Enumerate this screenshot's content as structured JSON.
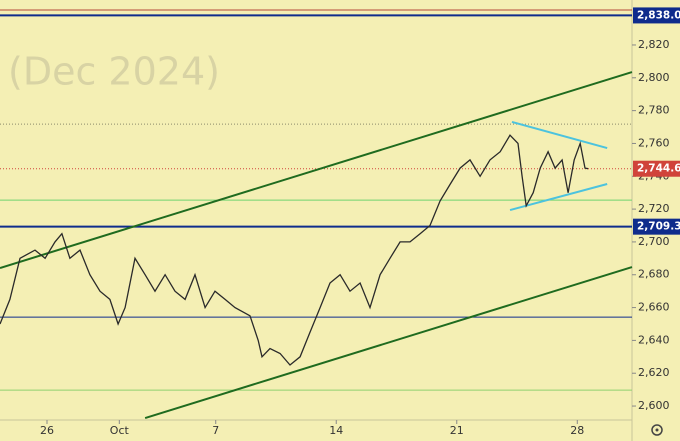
{
  "chart_data": {
    "type": "line",
    "watermark": "(Dec 2024)",
    "x": [
      -1.95,
      -1.54,
      -1.12,
      -0.5,
      -0.08,
      0.33,
      0.62,
      0.95,
      1.37,
      1.78,
      2.2,
      2.61,
      2.95,
      3.24,
      3.65,
      4.07,
      4.48,
      4.9,
      5.31,
      5.73,
      6.14,
      6.56,
      6.97,
      7.39,
      7.8,
      8.42,
      8.76,
      8.92,
      9.25,
      9.67,
      10.08,
      10.5,
      10.91,
      11.33,
      11.74,
      12.16,
      12.57,
      12.99,
      13.4,
      13.82,
      14.23,
      14.65,
      15.06,
      15.48,
      15.89,
      16.31,
      16.72,
      17.14,
      17.55,
      17.97,
      18.38,
      18.8,
      19.21,
      19.54,
      19.71,
      19.88,
      20.17,
      20.46,
      20.79,
      21.08,
      21.37,
      21.62,
      21.87,
      22.12,
      22.32,
      22.45
    ],
    "series": [
      {
        "color": "#2a2a2a",
        "values": [
          2650,
          2665,
          2690,
          2695,
          2690,
          2700,
          2705,
          2690,
          2695,
          2680,
          2670,
          2665,
          2650,
          2660,
          2690,
          2680,
          2670,
          2680,
          2670,
          2665,
          2680,
          2660,
          2670,
          2665,
          2660,
          2655,
          2640,
          2630,
          2635,
          2632,
          2625,
          2630,
          2645,
          2660,
          2675,
          2680,
          2670,
          2675,
          2660,
          2680,
          2690,
          2700,
          2700,
          2705,
          2710,
          2725,
          2735,
          2745,
          2750,
          2740,
          2750,
          2755,
          2765,
          2760,
          2740,
          2722,
          2730,
          2745,
          2755,
          2745,
          2750,
          2730,
          2750,
          2760,
          2745,
          2744.6
        ]
      }
    ],
    "trend_lines": [
      {
        "color": "#1f6b1f",
        "x": [
          -1.95,
          24.27
        ],
        "values": [
          2684.1,
          2803.5
        ]
      },
      {
        "color": "#1f6b1f",
        "x": [
          4.07,
          24.27
        ],
        "values": [
          2592.7,
          2684.7
        ]
      },
      {
        "color": "#4cc3de",
        "x": [
          19.29,
          23.24
        ],
        "values": [
          2773.1,
          2757.2
        ]
      },
      {
        "color": "#4cc3de",
        "x": [
          19.21,
          23.24
        ],
        "values": [
          2719.4,
          2735.3
        ]
      }
    ],
    "levels": [
      {
        "value": 2841.3,
        "color": "#b5483a",
        "style": "thin"
      },
      {
        "value": 2838,
        "label": "2,838.0",
        "color": "#0f2c8c",
        "style": "thick"
      },
      {
        "value": 2771.8,
        "color": "#8a8a6a",
        "style": "dotted"
      },
      {
        "value": 2744.6,
        "label": "2,744.6",
        "color": "#d0433a",
        "style": "dotted"
      },
      {
        "value": 2725.5,
        "color": "#6fd36f",
        "style": "thin"
      },
      {
        "value": 2709.3,
        "label": "2,709.3",
        "color": "#0f2c8c",
        "style": "thick"
      },
      {
        "value": 2654.2,
        "color": "#0f2c8c",
        "style": "thin"
      },
      {
        "value": 2609.7,
        "color": "#8fd06f",
        "style": "thin"
      }
    ],
    "xlim": [
      -1.95,
      24.27
    ],
    "ylim": [
      2591.5,
      2847.4
    ],
    "xticks": [
      {
        "value": 0,
        "label": "26"
      },
      {
        "value": 3,
        "label": "Oct"
      },
      {
        "value": 7,
        "label": "7"
      },
      {
        "value": 12,
        "label": "14"
      },
      {
        "value": 17,
        "label": "21"
      },
      {
        "value": 22,
        "label": "28"
      }
    ],
    "yticks": [
      {
        "value": 2600,
        "label": "2,600"
      },
      {
        "value": 2620,
        "label": "2,620"
      },
      {
        "value": 2640,
        "label": "2,640"
      },
      {
        "value": 2660,
        "label": "2,660"
      },
      {
        "value": 2680,
        "label": "2,680"
      },
      {
        "value": 2700,
        "label": "2,700"
      },
      {
        "value": 2720,
        "label": "2,720"
      },
      {
        "value": 2740,
        "label": "2,740"
      },
      {
        "value": 2760,
        "label": "2,760"
      },
      {
        "value": 2780,
        "label": "2,780"
      },
      {
        "value": 2800,
        "label": "2,800"
      },
      {
        "value": 2820,
        "label": "2,820"
      }
    ]
  }
}
